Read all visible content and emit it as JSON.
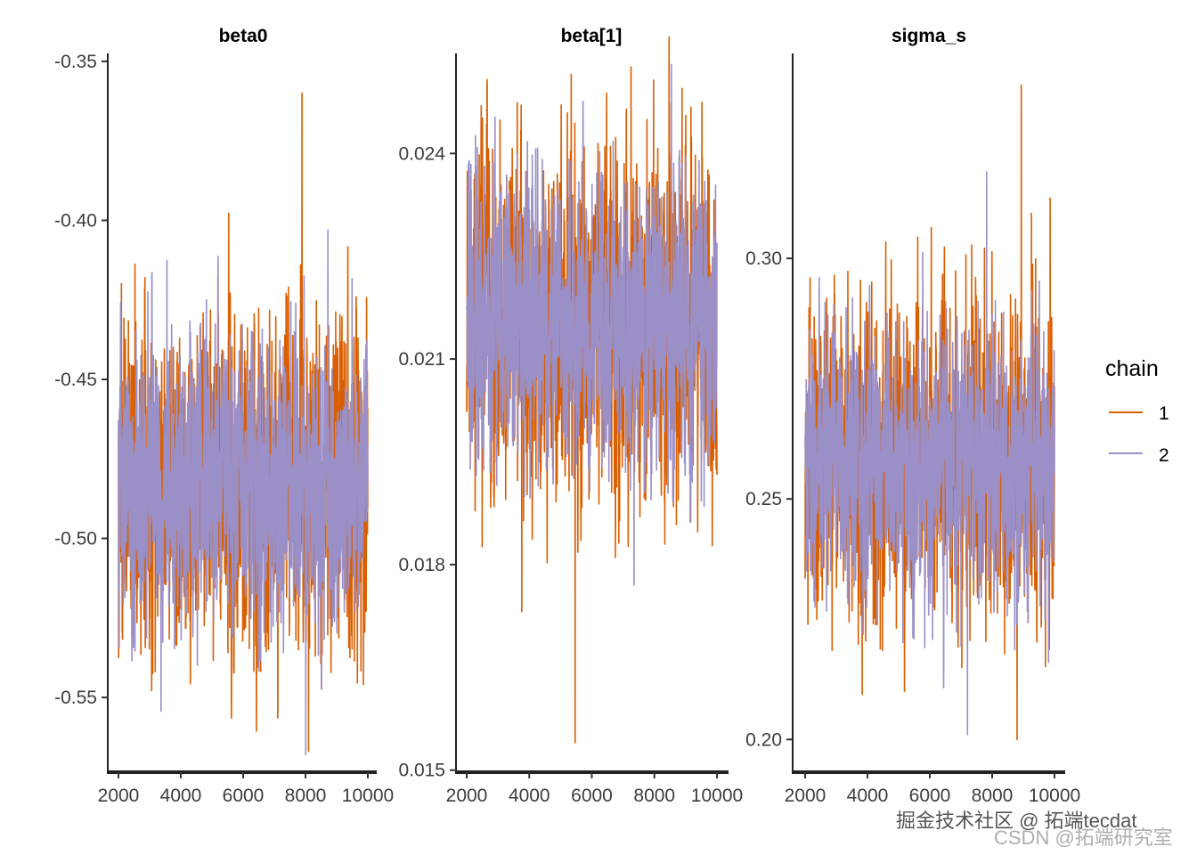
{
  "chart_data": {
    "type": "line",
    "title": "",
    "legend": {
      "title": "chain",
      "position": "right",
      "entries": [
        "1",
        "2"
      ]
    },
    "series_colors": {
      "1": "#D95F02",
      "2": "#9A8FC6"
    },
    "panels": [
      {
        "title": "beta0",
        "xlabel": "",
        "ylabel": "",
        "xlim": [
          2000,
          10000
        ],
        "ylim": [
          -0.5735,
          -0.3475
        ],
        "x_ticks": [
          2000,
          4000,
          6000,
          8000,
          10000
        ],
        "x_tick_labels": [
          "2000",
          "4000",
          "6000",
          "8000",
          "10000"
        ],
        "y_ticks": [
          -0.35,
          -0.4,
          -0.45,
          -0.5,
          -0.55
        ],
        "y_tick_labels": [
          "-0.35",
          "-0.40",
          "-0.45",
          "-0.50",
          "-0.55"
        ],
        "series": [
          {
            "name": "1",
            "mean": -0.482,
            "sd": 0.024,
            "min": -0.567,
            "max": -0.36
          },
          {
            "name": "2",
            "mean": -0.482,
            "sd": 0.02,
            "min": -0.568,
            "max": -0.403
          }
        ]
      },
      {
        "title": "beta[1]",
        "xlabel": "",
        "ylabel": "",
        "xlim": [
          2000,
          10000
        ],
        "ylim": [
          0.01497,
          0.02546
        ],
        "x_ticks": [
          2000,
          4000,
          6000,
          8000,
          10000
        ],
        "x_tick_labels": [
          "2000",
          "4000",
          "6000",
          "8000",
          "10000"
        ],
        "y_ticks": [
          0.015,
          0.018,
          0.021,
          0.024
        ],
        "y_tick_labels": [
          "0.015",
          "0.018",
          "0.021",
          "0.024"
        ],
        "series": [
          {
            "name": "1",
            "mean": 0.0215,
            "sd": 0.00115,
            "min": 0.0154,
            "max": 0.0257
          },
          {
            "name": "2",
            "mean": 0.0215,
            "sd": 0.00095,
            "min": 0.0177,
            "max": 0.0253
          }
        ]
      },
      {
        "title": "sigma_s",
        "xlabel": "",
        "ylabel": "",
        "xlim": [
          2000,
          10000
        ],
        "ylim": [
          0.1932,
          0.3426
        ],
        "x_ticks": [
          2000,
          4000,
          6000,
          8000,
          10000
        ],
        "x_tick_labels": [
          "2000",
          "4000",
          "6000",
          "8000",
          "10000"
        ],
        "y_ticks": [
          0.2,
          0.25,
          0.3
        ],
        "y_tick_labels": [
          "0.20",
          "0.25",
          "0.30"
        ],
        "series": [
          {
            "name": "1",
            "mean": 0.258,
            "sd": 0.015,
            "min": 0.2,
            "max": 0.336
          },
          {
            "name": "2",
            "mean": 0.258,
            "sd": 0.013,
            "min": 0.201,
            "max": 0.318
          }
        ]
      }
    ]
  },
  "watermark": {
    "line1": "掘金技术社区 @ 拓端tecdat",
    "line2": "CSDN @拓端研究室"
  }
}
